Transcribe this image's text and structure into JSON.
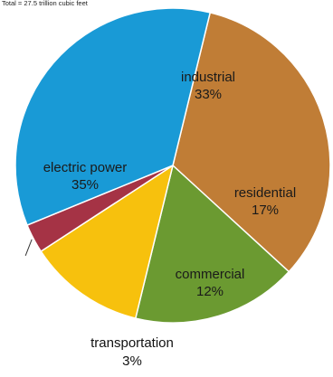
{
  "chart_data": {
    "type": "pie",
    "subtitle": "Total = 27.5 trillion cubic feet",
    "start_angle_deg": -76.3,
    "direction": "clockwise",
    "slices": [
      {
        "label": "industrial",
        "value": 33,
        "value_label": "33%",
        "color": "#c07d36"
      },
      {
        "label": "residential",
        "value": 17,
        "value_label": "17%",
        "color": "#6b9a31"
      },
      {
        "label": "commercial",
        "value": 12,
        "value_label": "12%",
        "color": "#f7c10d"
      },
      {
        "label": "transportation",
        "value": 3,
        "value_label": "3%",
        "color": "#a53345"
      },
      {
        "label": "electric power",
        "value": 35,
        "value_label": "35%",
        "color": "#199ad6"
      }
    ]
  }
}
